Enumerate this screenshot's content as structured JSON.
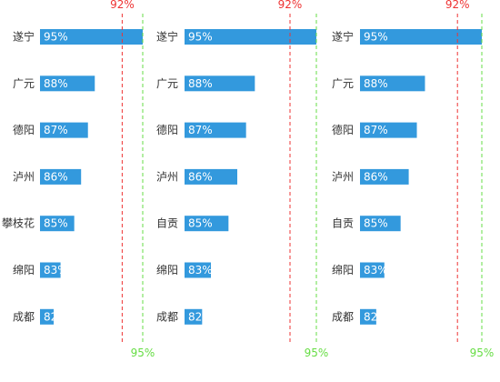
{
  "colors": {
    "bar": "#3399dd",
    "ref_low": "#ee3333",
    "ref_high": "#66dd44",
    "label": "#333333",
    "value_label": "#ffffff"
  },
  "chart_data": [
    {
      "type": "bar",
      "orientation": "horizontal",
      "categories": [
        "遂宁",
        "广元",
        "德阳",
        "泸州",
        "攀枝花",
        "绵阳",
        "成都"
      ],
      "values": [
        95,
        88,
        87,
        86,
        85,
        83,
        82
      ],
      "value_labels": [
        "95%",
        "88%",
        "87%",
        "86%",
        "85%",
        "83%",
        "82"
      ],
      "xlim": [
        80,
        95
      ],
      "reference_lines": [
        {
          "value": 92,
          "label": "92%",
          "color": "#ee3333",
          "style": "dashed",
          "label_position": "top"
        },
        {
          "value": 95,
          "label": "95%",
          "color": "#66dd44",
          "style": "dashed",
          "label_position": "bottom"
        }
      ]
    },
    {
      "type": "bar",
      "orientation": "horizontal",
      "categories": [
        "遂宁",
        "广元",
        "德阳",
        "泸州",
        "自贡",
        "绵阳",
        "成都"
      ],
      "values": [
        95,
        88,
        87,
        86,
        85,
        83,
        82
      ],
      "value_labels": [
        "95%",
        "88%",
        "87%",
        "86%",
        "85%",
        "83%",
        "82"
      ],
      "xlim": [
        80,
        95
      ],
      "reference_lines": [
        {
          "value": 92,
          "label": "92%",
          "color": "#ee3333",
          "style": "dashed",
          "label_position": "top"
        },
        {
          "value": 95,
          "label": "95%",
          "color": "#66dd44",
          "style": "dashed",
          "label_position": "bottom"
        }
      ]
    },
    {
      "type": "bar",
      "orientation": "horizontal",
      "categories": [
        "遂宁",
        "广元",
        "德阳",
        "泸州",
        "自贡",
        "绵阳",
        "成都"
      ],
      "values": [
        95,
        88,
        87,
        86,
        85,
        83,
        82
      ],
      "value_labels": [
        "95%",
        "88%",
        "87%",
        "86%",
        "85%",
        "83%",
        "82"
      ],
      "xlim": [
        80,
        95
      ],
      "reference_lines": [
        {
          "value": 92,
          "label": "92%",
          "color": "#ee3333",
          "style": "dashed",
          "label_position": "top"
        },
        {
          "value": 95,
          "label": "95%",
          "color": "#66dd44",
          "style": "dashed",
          "label_position": "bottom"
        }
      ]
    }
  ]
}
